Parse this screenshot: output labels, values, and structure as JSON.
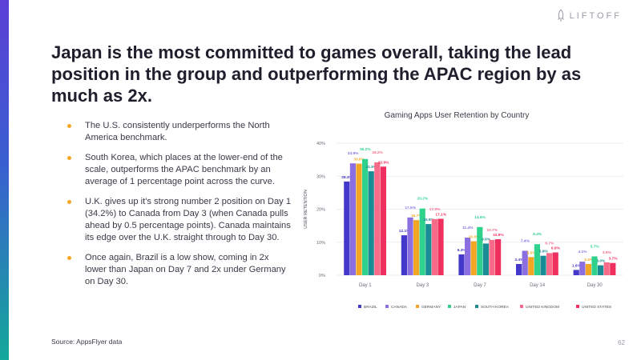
{
  "brand": {
    "name": "LIFTOFF"
  },
  "headline": "Japan is the most committed to games overall, taking the lead position in the group and outperforming the APAC region by as much as 2x.",
  "bullets": [
    "The U.S. consistently underperforms the North America benchmark.",
    "South Korea, which places at the lower-end of the scale, outperforms the APAC benchmark by an average of 1 percentage point across the curve.",
    "U.K. gives up it's strong number 2 position on Day 1 (34.2%) to Canada from Day 3 (when Canada pulls ahead by 0.5 percentage points). Canada maintains its edge over the U.K. straight through to Day 30.",
    "Once again, Brazil is a low show, coming in 2x lower than Japan on Day 7 and 2x under Germany on Day 30."
  ],
  "source": "Source: AppsFlyer data",
  "page_number": "62",
  "colors": {
    "accent_bullet": "#f5a623",
    "BRAZIL": "#4338c9",
    "CANADA": "#8b6fe0",
    "GERMANY": "#f2a623",
    "JAPAN": "#2ed28c",
    "SOUTH KOREA": "#1a8c93",
    "UNITED KINGDOM": "#f76a8a",
    "UNITED STATES": "#ef2f5e"
  },
  "chart_data": {
    "type": "bar",
    "title": "Gaming Apps User Retention by Country",
    "xlabel": "",
    "ylabel": "USER RETENTION",
    "ylim": [
      0,
      40
    ],
    "yticks": [
      "0%",
      "10%",
      "20%",
      "30%",
      "40%"
    ],
    "ytick_values": [
      0,
      10,
      20,
      30,
      40
    ],
    "grid": true,
    "legend_position": "bottom",
    "categories": [
      "Day 1",
      "Day 3",
      "Day 7",
      "Day 14",
      "Day 30"
    ],
    "series": [
      {
        "name": "BRAZIL",
        "values": [
          28.4,
          12.1,
          6.3,
          3.4,
          1.6
        ],
        "labels": [
          "28.4%",
          "12.1%",
          "6.3%",
          "3.4%",
          "1.6%"
        ]
      },
      {
        "name": "CANADA",
        "values": [
          33.9,
          17.5,
          11.4,
          7.4,
          4.1
        ],
        "labels": [
          "33.9%",
          "17.5%",
          "11.4%",
          "7.4%",
          "4.1%"
        ]
      },
      {
        "name": "GERMANY",
        "values": [
          33.8,
          16.7,
          10.3,
          5.5,
          3.4
        ],
        "labels": [
          "33.8%",
          "16.7%",
          "10.3%",
          "5.5%",
          "3.4%"
        ]
      },
      {
        "name": "JAPAN",
        "values": [
          35.2,
          20.2,
          14.6,
          9.4,
          5.7
        ],
        "labels": [
          "35.2%",
          "20.2%",
          "14.6%",
          "9.4%",
          "5.7%"
        ]
      },
      {
        "name": "SOUTH KOREA",
        "values": [
          31.5,
          15.5,
          9.6,
          5.9,
          3.0
        ],
        "labels": [
          "31.5%",
          "15.5%",
          "9.6%",
          "5.9%",
          "3.0%"
        ]
      },
      {
        "name": "UNITED KINGDOM",
        "values": [
          34.2,
          17.0,
          10.7,
          6.7,
          3.9
        ],
        "labels": [
          "34.2%",
          "17.0%",
          "10.7%",
          "6.7%",
          "3.9%"
        ]
      },
      {
        "name": "UNITED STATES",
        "values": [
          32.9,
          17.1,
          10.9,
          6.9,
          3.7
        ],
        "labels": [
          "32.9%",
          "17.1%",
          "10.9%",
          "6.9%",
          "3.7%"
        ]
      }
    ]
  }
}
